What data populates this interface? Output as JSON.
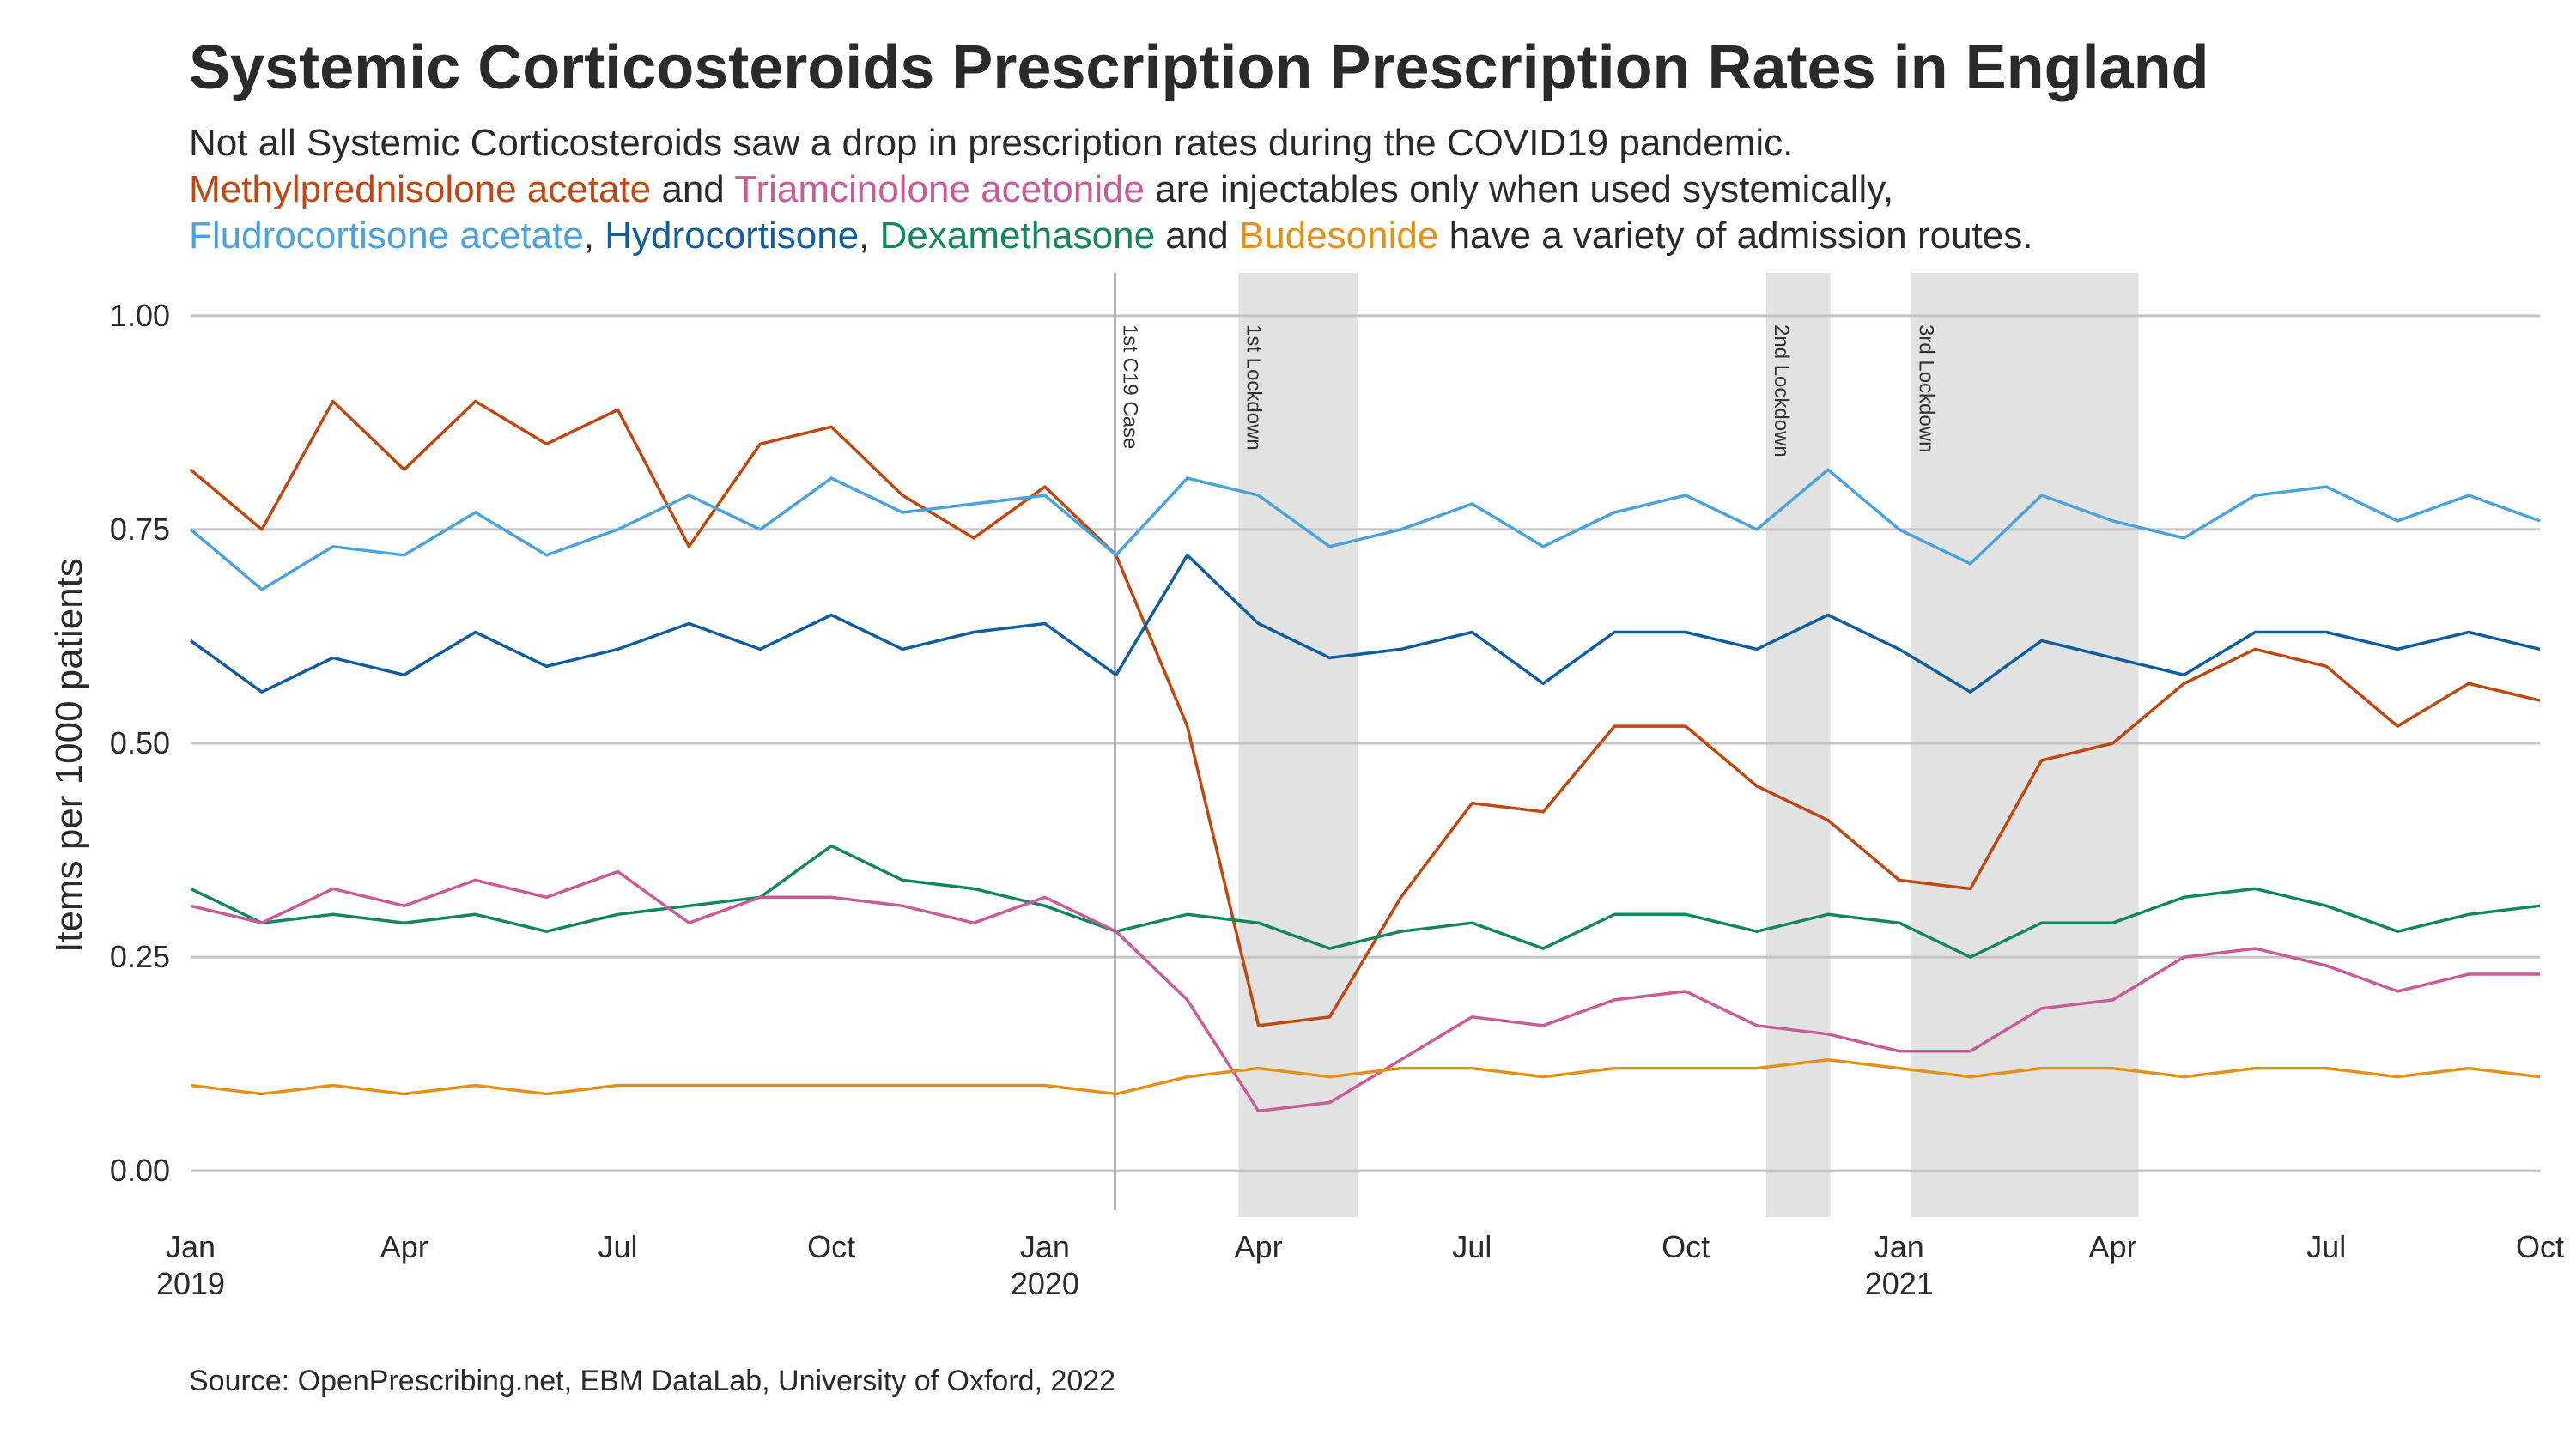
{
  "chart_data": {
    "type": "line",
    "title": "Systemic Corticosteroids Prescription Prescription Rates in England",
    "subtitle": {
      "line1": "Not all Systemic Corticosteroids saw a drop in prescription rates during the COVID19 pandemic.",
      "line2": {
        "s1": "Methylprednisolone acetate",
        "t1": " and ",
        "s2": "Triamcinolone acetonide",
        "t2": " are injectables only when used systemically,"
      },
      "line3": {
        "s1": "Fludrocortisone acetate",
        "t1": ", ",
        "s2": "Hydrocortisone",
        "t2": ", ",
        "s3": "Dexamethasone",
        "t3": " and ",
        "s4": "Budesonide",
        "t4": " have a variety of admission routes."
      }
    },
    "caption": "Source: OpenPrescribing.net, EBM DataLab, University of Oxford, 2022",
    "ylabel": "Items per 1000 patients",
    "ylim": [
      -0.05,
      1.05
    ],
    "yticks": [
      0.0,
      0.25,
      0.5,
      0.75,
      1.0
    ],
    "ytick_labels": [
      "0.00",
      "0.25",
      "0.50",
      "0.75",
      "1.00"
    ],
    "xlim": [
      "2019-01",
      "2021-10"
    ],
    "x": [
      "2019-01",
      "2019-02",
      "2019-03",
      "2019-04",
      "2019-05",
      "2019-06",
      "2019-07",
      "2019-08",
      "2019-09",
      "2019-10",
      "2019-11",
      "2019-12",
      "2020-01",
      "2020-02",
      "2020-03",
      "2020-04",
      "2020-05",
      "2020-06",
      "2020-07",
      "2020-08",
      "2020-09",
      "2020-10",
      "2020-11",
      "2020-12",
      "2021-01",
      "2021-02",
      "2021-03",
      "2021-04",
      "2021-05",
      "2021-06",
      "2021-07",
      "2021-08",
      "2021-09",
      "2021-10"
    ],
    "xticks": [
      {
        "date": "2019-01",
        "label": "Jan",
        "year": "2019"
      },
      {
        "date": "2019-04",
        "label": "Apr",
        "year": ""
      },
      {
        "date": "2019-07",
        "label": "Jul",
        "year": ""
      },
      {
        "date": "2019-10",
        "label": "Oct",
        "year": ""
      },
      {
        "date": "2020-01",
        "label": "Jan",
        "year": "2020"
      },
      {
        "date": "2020-04",
        "label": "Apr",
        "year": ""
      },
      {
        "date": "2020-07",
        "label": "Jul",
        "year": ""
      },
      {
        "date": "2020-10",
        "label": "Oct",
        "year": ""
      },
      {
        "date": "2021-01",
        "label": "Jan",
        "year": "2021"
      },
      {
        "date": "2021-04",
        "label": "Apr",
        "year": ""
      },
      {
        "date": "2021-07",
        "label": "Jul",
        "year": ""
      },
      {
        "date": "2021-10",
        "label": "Oct",
        "year": ""
      }
    ],
    "events": [
      {
        "label": "1st C19 Case",
        "type": "line",
        "date": "2020-01-31"
      },
      {
        "label": "1st Lockdown",
        "type": "band",
        "start": "2020-03-23",
        "end": "2020-05-13"
      },
      {
        "label": "2nd Lockdown",
        "type": "band",
        "start": "2020-11-05",
        "end": "2020-12-02"
      },
      {
        "label": "3rd Lockdown",
        "type": "band",
        "start": "2021-01-06",
        "end": "2021-04-12"
      }
    ],
    "grid": true,
    "legend": "none",
    "series": [
      {
        "name": "Methylprednisolone acetate",
        "color": "#C0470F",
        "values": [
          0.82,
          0.75,
          0.9,
          0.82,
          0.9,
          0.85,
          0.89,
          0.73,
          0.85,
          0.87,
          0.79,
          0.74,
          0.8,
          0.72,
          0.52,
          0.17,
          0.18,
          0.32,
          0.43,
          0.42,
          0.52,
          0.52,
          0.45,
          0.41,
          0.34,
          0.33,
          0.48,
          0.5,
          0.57,
          0.61,
          0.59,
          0.52,
          0.57,
          0.55
        ]
      },
      {
        "name": "Fludrocortisone acetate",
        "color": "#4BA3DE",
        "values": [
          0.75,
          0.68,
          0.73,
          0.72,
          0.77,
          0.72,
          0.75,
          0.79,
          0.75,
          0.81,
          0.77,
          0.78,
          0.79,
          0.72,
          0.81,
          0.79,
          0.73,
          0.75,
          0.78,
          0.73,
          0.77,
          0.79,
          0.75,
          0.82,
          0.75,
          0.71,
          0.79,
          0.76,
          0.74,
          0.79,
          0.8,
          0.76,
          0.79,
          0.76
        ]
      },
      {
        "name": "Hydrocortisone",
        "color": "#0F5EA0",
        "values": [
          0.62,
          0.56,
          0.6,
          0.58,
          0.63,
          0.59,
          0.61,
          0.64,
          0.61,
          0.65,
          0.61,
          0.63,
          0.64,
          0.58,
          0.72,
          0.64,
          0.6,
          0.61,
          0.63,
          0.57,
          0.63,
          0.63,
          0.61,
          0.65,
          0.61,
          0.56,
          0.62,
          0.6,
          0.58,
          0.63,
          0.63,
          0.61,
          0.63,
          0.61
        ]
      },
      {
        "name": "Dexamethasone",
        "color": "#12875E",
        "values": [
          0.33,
          0.29,
          0.3,
          0.29,
          0.3,
          0.28,
          0.3,
          0.31,
          0.32,
          0.38,
          0.34,
          0.33,
          0.31,
          0.28,
          0.3,
          0.29,
          0.26,
          0.28,
          0.29,
          0.26,
          0.3,
          0.3,
          0.28,
          0.3,
          0.29,
          0.25,
          0.29,
          0.29,
          0.32,
          0.33,
          0.31,
          0.28,
          0.3,
          0.31
        ]
      },
      {
        "name": "Triamcinolone acetonide",
        "color": "#C95C98",
        "values": [
          0.31,
          0.29,
          0.33,
          0.31,
          0.34,
          0.32,
          0.35,
          0.29,
          0.32,
          0.32,
          0.31,
          0.29,
          0.32,
          0.28,
          0.2,
          0.07,
          0.08,
          0.13,
          0.18,
          0.17,
          0.2,
          0.21,
          0.17,
          0.16,
          0.14,
          0.14,
          0.19,
          0.2,
          0.25,
          0.26,
          0.24,
          0.21,
          0.23,
          0.23
        ]
      },
      {
        "name": "Budesonide",
        "color": "#E39217",
        "values": [
          0.1,
          0.09,
          0.1,
          0.09,
          0.1,
          0.09,
          0.1,
          0.1,
          0.1,
          0.1,
          0.1,
          0.1,
          0.1,
          0.09,
          0.11,
          0.12,
          0.11,
          0.12,
          0.12,
          0.11,
          0.12,
          0.12,
          0.12,
          0.13,
          0.12,
          0.11,
          0.12,
          0.12,
          0.11,
          0.12,
          0.12,
          0.11,
          0.12,
          0.11
        ]
      }
    ]
  }
}
